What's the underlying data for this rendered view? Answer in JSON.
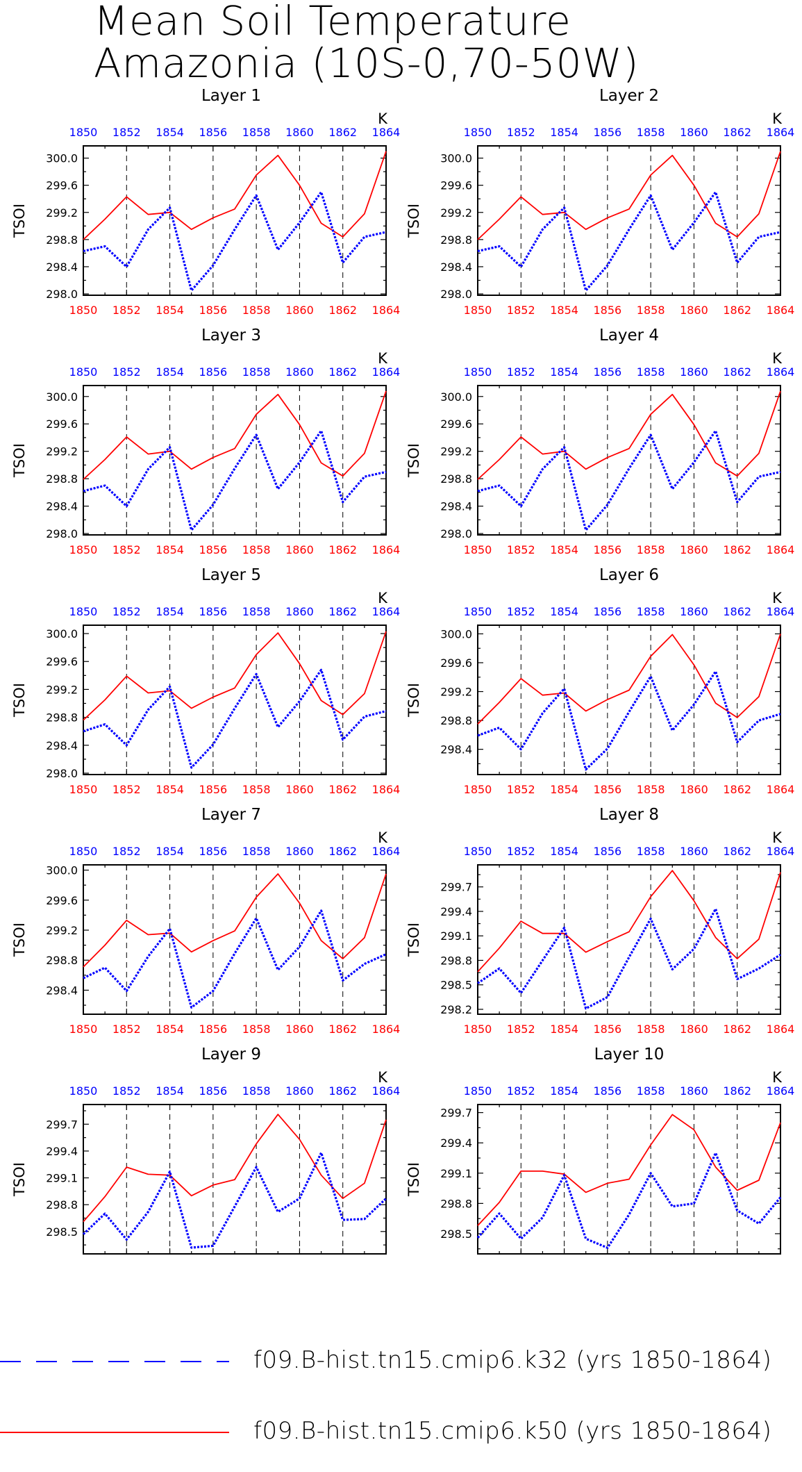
{
  "title": {
    "line1": "Mean Soil Temperature",
    "line2": "Amazonia (10S-0,70-50W)"
  },
  "colors": {
    "k32": "#0000ff",
    "k50": "#ff0000",
    "axis": "#000000"
  },
  "legend": [
    {
      "label": "f09.B-hist.tn15.cmip6.k32 (yrs 1850-1864)",
      "color": "#0000ff",
      "style": "dashed"
    },
    {
      "label": "f09.B-hist.tn15.cmip6.k50 (yrs 1850-1864)",
      "color": "#ff0000",
      "style": "solid"
    }
  ],
  "chart_data": [
    {
      "type": "line",
      "title": "Layer 1",
      "ylabel": "TSOI",
      "units": "K",
      "x": [
        1850,
        1851,
        1852,
        1853,
        1854,
        1855,
        1856,
        1857,
        1858,
        1859,
        1860,
        1861,
        1862,
        1863,
        1864
      ],
      "xticks": [
        1850,
        1852,
        1854,
        1856,
        1858,
        1860,
        1862,
        1864
      ],
      "ylim": [
        297.98,
        300.18
      ],
      "yticks": [
        298.0,
        298.4,
        298.8,
        299.2,
        299.6,
        300.0
      ],
      "vlines": [
        1852,
        1854,
        1856,
        1858,
        1860,
        1862
      ],
      "series": [
        {
          "name": "f09.B-hist.tn15.cmip6.k50 (yrs 1850-1864)",
          "values": [
            298.8,
            299.1,
            299.43,
            299.17,
            299.2,
            298.95,
            299.12,
            299.25,
            299.75,
            300.04,
            299.6,
            299.04,
            298.84,
            299.18,
            300.1
          ]
        },
        {
          "name": "f09.B-hist.tn15.cmip6.k32 (yrs 1850-1864)",
          "values": [
            298.63,
            298.7,
            298.4,
            298.95,
            299.27,
            298.05,
            298.42,
            298.95,
            299.45,
            298.65,
            299.05,
            299.5,
            298.46,
            298.84,
            298.91
          ]
        }
      ]
    },
    {
      "type": "line",
      "title": "Layer 2",
      "ylabel": "TSOI",
      "units": "K",
      "x": [
        1850,
        1851,
        1852,
        1853,
        1854,
        1855,
        1856,
        1857,
        1858,
        1859,
        1860,
        1861,
        1862,
        1863,
        1864
      ],
      "xticks": [
        1850,
        1852,
        1854,
        1856,
        1858,
        1860,
        1862,
        1864
      ],
      "ylim": [
        297.98,
        300.18
      ],
      "yticks": [
        298.0,
        298.4,
        298.8,
        299.2,
        299.6,
        300.0
      ],
      "vlines": [
        1852,
        1854,
        1856,
        1858,
        1860,
        1862
      ],
      "series": [
        {
          "name": "f09.B-hist.tn15.cmip6.k50 (yrs 1850-1864)",
          "values": [
            298.8,
            299.1,
            299.43,
            299.17,
            299.2,
            298.95,
            299.12,
            299.25,
            299.75,
            300.04,
            299.6,
            299.04,
            298.84,
            299.18,
            300.1
          ]
        },
        {
          "name": "f09.B-hist.tn15.cmip6.k32 (yrs 1850-1864)",
          "values": [
            298.63,
            298.7,
            298.4,
            298.95,
            299.27,
            298.05,
            298.42,
            298.95,
            299.45,
            298.65,
            299.05,
            299.5,
            298.46,
            298.84,
            298.91
          ]
        }
      ]
    },
    {
      "type": "line",
      "title": "Layer 3",
      "ylabel": "TSOI",
      "units": "K",
      "x": [
        1850,
        1851,
        1852,
        1853,
        1854,
        1855,
        1856,
        1857,
        1858,
        1859,
        1860,
        1861,
        1862,
        1863,
        1864
      ],
      "xticks": [
        1850,
        1852,
        1854,
        1856,
        1858,
        1860,
        1862,
        1864
      ],
      "ylim": [
        297.98,
        300.16
      ],
      "yticks": [
        298.0,
        298.4,
        298.8,
        299.2,
        299.6,
        300.0
      ],
      "vlines": [
        1852,
        1854,
        1856,
        1858,
        1860,
        1862
      ],
      "series": [
        {
          "name": "f09.B-hist.tn15.cmip6.k50 (yrs 1850-1864)",
          "values": [
            298.79,
            299.08,
            299.41,
            299.16,
            299.2,
            298.94,
            299.11,
            299.24,
            299.74,
            300.03,
            299.59,
            299.03,
            298.84,
            299.17,
            300.08
          ]
        },
        {
          "name": "f09.B-hist.tn15.cmip6.k32 (yrs 1850-1864)",
          "values": [
            298.62,
            298.7,
            298.4,
            298.94,
            299.26,
            298.05,
            298.42,
            298.95,
            299.44,
            298.65,
            299.04,
            299.5,
            298.46,
            298.83,
            298.9
          ]
        }
      ]
    },
    {
      "type": "line",
      "title": "Layer 4",
      "ylabel": "TSOI",
      "units": "K",
      "x": [
        1850,
        1851,
        1852,
        1853,
        1854,
        1855,
        1856,
        1857,
        1858,
        1859,
        1860,
        1861,
        1862,
        1863,
        1864
      ],
      "xticks": [
        1850,
        1852,
        1854,
        1856,
        1858,
        1860,
        1862,
        1864
      ],
      "ylim": [
        297.98,
        300.16
      ],
      "yticks": [
        298.0,
        298.4,
        298.8,
        299.2,
        299.6,
        300.0
      ],
      "vlines": [
        1852,
        1854,
        1856,
        1858,
        1860,
        1862
      ],
      "series": [
        {
          "name": "f09.B-hist.tn15.cmip6.k50 (yrs 1850-1864)",
          "values": [
            298.79,
            299.08,
            299.41,
            299.16,
            299.2,
            298.94,
            299.11,
            299.24,
            299.74,
            300.03,
            299.59,
            299.03,
            298.84,
            299.17,
            300.08
          ]
        },
        {
          "name": "f09.B-hist.tn15.cmip6.k32 (yrs 1850-1864)",
          "values": [
            298.62,
            298.7,
            298.4,
            298.94,
            299.26,
            298.05,
            298.42,
            298.95,
            299.44,
            298.65,
            299.04,
            299.5,
            298.46,
            298.83,
            298.9
          ]
        }
      ]
    },
    {
      "type": "line",
      "title": "Layer 5",
      "ylabel": "TSOI",
      "units": "K",
      "x": [
        1850,
        1851,
        1852,
        1853,
        1854,
        1855,
        1856,
        1857,
        1858,
        1859,
        1860,
        1861,
        1862,
        1863,
        1864
      ],
      "xticks": [
        1850,
        1852,
        1854,
        1856,
        1858,
        1860,
        1862,
        1864
      ],
      "ylim": [
        297.98,
        300.12
      ],
      "yticks": [
        298.0,
        298.4,
        298.8,
        299.2,
        299.6,
        300.0
      ],
      "vlines": [
        1852,
        1854,
        1856,
        1858,
        1860,
        1862
      ],
      "series": [
        {
          "name": "f09.B-hist.tn15.cmip6.k50 (yrs 1850-1864)",
          "values": [
            298.76,
            299.05,
            299.39,
            299.15,
            299.18,
            298.93,
            299.09,
            299.22,
            299.7,
            300.01,
            299.57,
            299.04,
            298.84,
            299.14,
            300.03
          ]
        },
        {
          "name": "f09.B-hist.tn15.cmip6.k32 (yrs 1850-1864)",
          "values": [
            298.6,
            298.7,
            298.4,
            298.91,
            299.24,
            298.08,
            298.41,
            298.93,
            299.42,
            298.66,
            299.03,
            299.48,
            298.48,
            298.81,
            298.89
          ]
        }
      ]
    },
    {
      "type": "line",
      "title": "Layer 6",
      "ylabel": "TSOI",
      "units": "K",
      "x": [
        1850,
        1851,
        1852,
        1853,
        1854,
        1855,
        1856,
        1857,
        1858,
        1859,
        1860,
        1861,
        1862,
        1863,
        1864
      ],
      "xticks": [
        1850,
        1852,
        1854,
        1856,
        1858,
        1860,
        1862,
        1864
      ],
      "ylim": [
        298.05,
        300.12
      ],
      "yticks": [
        298.4,
        298.8,
        299.2,
        299.6,
        300.0
      ],
      "vlines": [
        1852,
        1854,
        1856,
        1858,
        1860,
        1862
      ],
      "series": [
        {
          "name": "f09.B-hist.tn15.cmip6.k50 (yrs 1850-1864)",
          "values": [
            298.75,
            299.05,
            299.38,
            299.15,
            299.18,
            298.93,
            299.09,
            299.22,
            299.69,
            299.99,
            299.57,
            299.04,
            298.84,
            299.13,
            300.0
          ]
        },
        {
          "name": "f09.B-hist.tn15.cmip6.k32 (yrs 1850-1864)",
          "values": [
            298.59,
            298.7,
            298.4,
            298.9,
            299.24,
            298.12,
            298.41,
            298.92,
            299.41,
            298.66,
            299.02,
            299.48,
            298.5,
            298.8,
            298.89
          ]
        }
      ]
    },
    {
      "type": "line",
      "title": "Layer 7",
      "ylabel": "TSOI",
      "units": "K",
      "x": [
        1850,
        1851,
        1852,
        1853,
        1854,
        1855,
        1856,
        1857,
        1858,
        1859,
        1860,
        1861,
        1862,
        1863,
        1864
      ],
      "xticks": [
        1850,
        1852,
        1854,
        1856,
        1858,
        1860,
        1862,
        1864
      ],
      "ylim": [
        298.08,
        300.07
      ],
      "yticks": [
        298.4,
        298.8,
        299.2,
        299.6,
        300.0
      ],
      "vlines": [
        1852,
        1854,
        1856,
        1858,
        1860,
        1862
      ],
      "series": [
        {
          "name": "f09.B-hist.tn15.cmip6.k50 (yrs 1850-1864)",
          "values": [
            298.71,
            299.0,
            299.33,
            299.14,
            299.16,
            298.91,
            299.06,
            299.19,
            299.64,
            299.95,
            299.56,
            299.06,
            298.82,
            299.1,
            299.95
          ]
        },
        {
          "name": "f09.B-hist.tn15.cmip6.k32 (yrs 1850-1864)",
          "values": [
            298.56,
            298.7,
            298.39,
            298.85,
            299.22,
            298.17,
            298.39,
            298.89,
            299.36,
            298.67,
            298.98,
            299.46,
            298.53,
            298.75,
            298.88
          ]
        }
      ]
    },
    {
      "type": "line",
      "title": "Layer 8",
      "ylabel": "TSOI",
      "units": "K",
      "x": [
        1850,
        1851,
        1852,
        1853,
        1854,
        1855,
        1856,
        1857,
        1858,
        1859,
        1860,
        1861,
        1862,
        1863,
        1864
      ],
      "xticks": [
        1850,
        1852,
        1854,
        1856,
        1858,
        1860,
        1862,
        1864
      ],
      "ylim": [
        298.14,
        299.97
      ],
      "yticks": [
        298.2,
        298.5,
        298.8,
        299.1,
        299.4,
        299.7
      ],
      "vlines": [
        1852,
        1854,
        1856,
        1858,
        1860,
        1862
      ],
      "series": [
        {
          "name": "f09.B-hist.tn15.cmip6.k50 (yrs 1850-1864)",
          "values": [
            298.66,
            298.95,
            299.28,
            299.13,
            299.13,
            298.9,
            299.03,
            299.15,
            299.58,
            299.9,
            299.53,
            299.08,
            298.82,
            299.06,
            299.88
          ]
        },
        {
          "name": "f09.B-hist.tn15.cmip6.k32 (yrs 1850-1864)",
          "values": [
            298.52,
            298.7,
            298.4,
            298.8,
            299.2,
            298.21,
            298.35,
            298.84,
            299.31,
            298.69,
            298.94,
            299.43,
            298.57,
            298.7,
            298.87
          ]
        }
      ]
    },
    {
      "type": "line",
      "title": "Layer 9",
      "ylabel": "TSOI",
      "units": "K",
      "x": [
        1850,
        1851,
        1852,
        1853,
        1854,
        1855,
        1856,
        1857,
        1858,
        1859,
        1860,
        1861,
        1862,
        1863,
        1864
      ],
      "xticks": [
        1850,
        1852,
        1854,
        1856,
        1858,
        1860,
        1862,
        1864
      ],
      "ylim": [
        298.25,
        299.92
      ],
      "yticks": [
        298.5,
        298.8,
        299.1,
        299.4,
        299.7
      ],
      "vlines": [
        1852,
        1854,
        1856,
        1858,
        1860,
        1862
      ],
      "series": [
        {
          "name": "f09.B-hist.tn15.cmip6.k50 (yrs 1850-1864)",
          "values": [
            298.61,
            298.89,
            299.22,
            299.14,
            299.13,
            298.9,
            299.02,
            299.08,
            299.48,
            299.81,
            299.53,
            299.13,
            298.87,
            299.04,
            299.75
          ]
        },
        {
          "name": "f09.B-hist.tn15.cmip6.k32 (yrs 1850-1864)",
          "values": [
            298.47,
            298.7,
            298.41,
            298.72,
            299.17,
            298.32,
            298.34,
            298.78,
            299.22,
            298.72,
            298.87,
            299.38,
            298.63,
            298.64,
            298.87
          ]
        }
      ]
    },
    {
      "type": "line",
      "title": "Layer 10",
      "ylabel": "TSOI",
      "units": "K",
      "x": [
        1850,
        1851,
        1852,
        1853,
        1854,
        1855,
        1856,
        1857,
        1858,
        1859,
        1860,
        1861,
        1862,
        1863,
        1864
      ],
      "xticks": [
        1850,
        1852,
        1854,
        1856,
        1858,
        1860,
        1862,
        1864
      ],
      "ylim": [
        298.3,
        299.78
      ],
      "yticks": [
        298.5,
        298.8,
        299.1,
        299.4,
        299.7
      ],
      "vlines": [
        1852,
        1854,
        1856,
        1858,
        1860,
        1862
      ],
      "series": [
        {
          "name": "f09.B-hist.tn15.cmip6.k50 (yrs 1850-1864)",
          "values": [
            298.58,
            298.81,
            299.12,
            299.12,
            299.09,
            298.91,
            299.0,
            299.04,
            299.38,
            299.68,
            299.53,
            299.16,
            298.93,
            299.03,
            299.6
          ]
        },
        {
          "name": "f09.B-hist.tn15.cmip6.k32 (yrs 1850-1864)",
          "values": [
            298.46,
            298.7,
            298.45,
            298.66,
            299.08,
            298.45,
            298.36,
            298.69,
            299.1,
            298.77,
            298.8,
            299.3,
            298.73,
            298.6,
            298.86
          ]
        }
      ]
    }
  ]
}
